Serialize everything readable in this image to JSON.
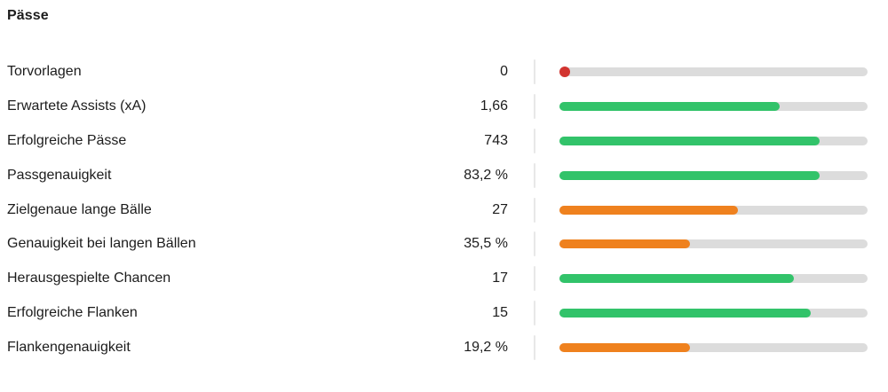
{
  "title": "Pässe",
  "colors": {
    "green": "#32c36a",
    "orange": "#ef811e",
    "red": "#d23430",
    "track": "#dcdcdc",
    "separator": "#e8e8e8",
    "text": "#1c1c1c"
  },
  "chart_data": {
    "type": "bar",
    "orientation": "horizontal",
    "title": "Pässe",
    "legend": "none",
    "rows": [
      {
        "label": "Torvorlagen",
        "value": "0",
        "numeric": 0,
        "percent": 0,
        "color": "red",
        "style": "dot"
      },
      {
        "label": "Erwartete Assists (xA)",
        "value": "1,66",
        "numeric": 1.66,
        "percent": 71.5,
        "color": "green",
        "style": "bar"
      },
      {
        "label": "Erfolgreiche Pässe",
        "value": "743",
        "numeric": 743,
        "percent": 84.5,
        "color": "green",
        "style": "bar"
      },
      {
        "label": "Passgenauigkeit",
        "value": "83,2 %",
        "numeric": 83.2,
        "percent": 84.5,
        "color": "green",
        "style": "bar"
      },
      {
        "label": "Zielgenaue lange Bälle",
        "value": "27",
        "numeric": 27,
        "percent": 58,
        "color": "orange",
        "style": "bar"
      },
      {
        "label": "Genauigkeit bei langen Bällen",
        "value": "35,5 %",
        "numeric": 35.5,
        "percent": 42.5,
        "color": "orange",
        "style": "bar"
      },
      {
        "label": "Herausgespielte Chancen",
        "value": "17",
        "numeric": 17,
        "percent": 76,
        "color": "green",
        "style": "bar"
      },
      {
        "label": "Erfolgreiche Flanken",
        "value": "15",
        "numeric": 15,
        "percent": 81.5,
        "color": "green",
        "style": "bar"
      },
      {
        "label": "Flankengenauigkeit",
        "value": "19,2 %",
        "numeric": 19.2,
        "percent": 42.5,
        "color": "orange",
        "style": "bar"
      }
    ]
  }
}
